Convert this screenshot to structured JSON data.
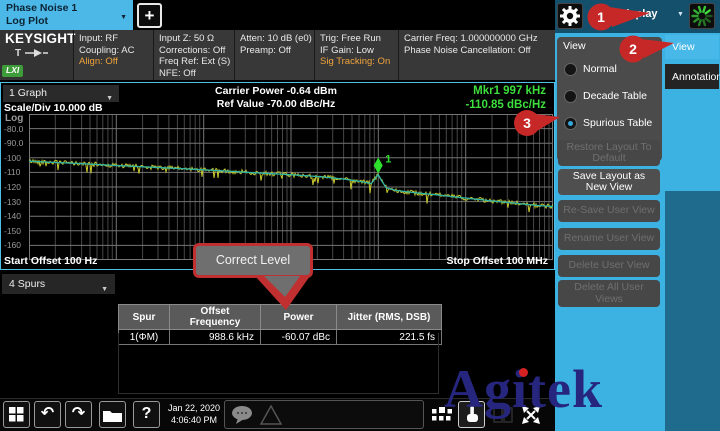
{
  "tab_bar": {
    "tab_line1": "Phase Noise 1",
    "tab_line2": "Log Plot",
    "add_label": "+"
  },
  "status_bar": {
    "brand": "KEYSIGHT",
    "trace_letter": "T",
    "lxi": "LXI",
    "col1": {
      "l1": "Input: RF",
      "l2": "Coupling: AC",
      "l3": "Align: Off"
    },
    "col2": {
      "l1": "Input Z: 50 Ω",
      "l2": "Corrections: Off",
      "l3": "Freq Ref: Ext (S)",
      "l4": "NFE: Off"
    },
    "col3": {
      "l1": "Atten: 10 dB (e0)",
      "l2": "Preamp: Off"
    },
    "col4": {
      "l1": "Trig: Free Run",
      "l2": "IF Gain: Low",
      "l3": "Sig Tracking: On"
    },
    "col5": {
      "l1": "Carrier Freq: 1.000000000 GHz",
      "l2": "Phase Noise Cancellation: Off"
    }
  },
  "graph": {
    "selector": "1 Graph",
    "scale_div": "Scale/Div 10.000 dB",
    "carrier_power": "Carrier Power -0.64 dBm",
    "ref_value": "Ref Value -70.00 dBc/Hz",
    "marker_line1": "Mkr1  997 kHz",
    "marker_line2": "-110.85 dBc/Hz",
    "log_label": "Log",
    "start_label": "Start Offset 100 Hz",
    "stop_label": "Stop Offset 100 MHz"
  },
  "chart_data": {
    "type": "line",
    "title": "Phase Noise Log Plot",
    "x_axis": {
      "scale": "log",
      "start_hz": 100,
      "stop_hz": 100000000,
      "decades": 6
    },
    "y_axis": {
      "top_dbc": -70,
      "bottom_dbc": -170,
      "scale_div_db": 10,
      "ticks": [
        "-80.0",
        "-90.0",
        "-100",
        "-110",
        "-120",
        "-130",
        "-140",
        "-150",
        "-160"
      ]
    },
    "series": [
      {
        "name": "raw-trace",
        "color": "#c9c930",
        "noise_db": 1.5,
        "anchors": [
          [
            2.0,
            -102.3
          ],
          [
            2.3,
            -103.2
          ],
          [
            2.6,
            -104.0
          ],
          [
            3.0,
            -105.3
          ],
          [
            3.4,
            -106.4
          ],
          [
            3.8,
            -107.6
          ],
          [
            4.2,
            -108.9
          ],
          [
            4.6,
            -110.3
          ],
          [
            5.0,
            -111.6
          ],
          [
            5.3,
            -112.8
          ],
          [
            5.6,
            -114.5
          ],
          [
            5.8,
            -116.3
          ],
          [
            5.92,
            -117.6
          ],
          [
            5.96,
            -114.5
          ],
          [
            5.999,
            -111.4
          ],
          [
            6.04,
            -116.0
          ],
          [
            6.09,
            -120.5
          ],
          [
            6.2,
            -122.3
          ],
          [
            6.4,
            -123.8
          ],
          [
            6.7,
            -125.6
          ],
          [
            7.0,
            -127.6
          ],
          [
            7.3,
            -129.5
          ],
          [
            7.6,
            -131.3
          ],
          [
            7.85,
            -132.8
          ],
          [
            8.0,
            -133.3
          ]
        ]
      },
      {
        "name": "smoothed-trace",
        "color": "#2eb4a4",
        "noise_db": 0,
        "anchors": [
          [
            2.0,
            -102.3
          ],
          [
            2.3,
            -103.2
          ],
          [
            2.6,
            -104.0
          ],
          [
            3.0,
            -105.3
          ],
          [
            3.4,
            -106.4
          ],
          [
            3.8,
            -107.6
          ],
          [
            4.2,
            -108.9
          ],
          [
            4.6,
            -110.3
          ],
          [
            5.0,
            -111.6
          ],
          [
            5.3,
            -112.8
          ],
          [
            5.6,
            -114.5
          ],
          [
            5.8,
            -116.3
          ],
          [
            5.92,
            -117.6
          ],
          [
            5.96,
            -114.5
          ],
          [
            5.999,
            -111.4
          ],
          [
            6.04,
            -116.0
          ],
          [
            6.09,
            -120.5
          ],
          [
            6.2,
            -122.3
          ],
          [
            6.4,
            -123.8
          ],
          [
            6.7,
            -125.6
          ],
          [
            7.0,
            -127.6
          ],
          [
            7.3,
            -129.5
          ],
          [
            7.6,
            -131.3
          ],
          [
            7.85,
            -132.8
          ],
          [
            8.0,
            -133.3
          ]
        ]
      }
    ],
    "marker": {
      "label": "1",
      "freq_hz": 997000,
      "value_dbc_hz": -110.85,
      "color": "#2ce02c"
    },
    "grid": {
      "major_color": "#757575",
      "minor_color": "#474747"
    }
  },
  "spurs": {
    "selector": "4 Spurs",
    "headers": [
      "Spur",
      "Offset Frequency",
      "Power",
      "Jitter (RMS, DSB)"
    ],
    "row0": {
      "spur": "1(ΦM)",
      "offset": "988.6 kHz",
      "power": "-60.07 dBc",
      "jitter": "221.5 fs"
    }
  },
  "callout": {
    "text": "Correct Level"
  },
  "annotations": {
    "n1": "1",
    "n2": "2",
    "n3": "3",
    "color": "#c62828"
  },
  "header_menu": {
    "display_label": "Display"
  },
  "side_panel": {
    "group_title": "View",
    "options": [
      {
        "label": "Normal",
        "selected": false
      },
      {
        "label": "Decade Table",
        "selected": false
      },
      {
        "label": "Spurious Table",
        "selected": true
      }
    ],
    "buttons": [
      {
        "label": "Restore Layout To Default",
        "enabled": false
      },
      {
        "label": "Save Layout as New View",
        "enabled": true
      },
      {
        "label": "Re-Save User View",
        "enabled": false
      },
      {
        "label": "Rename User View",
        "enabled": false
      },
      {
        "label": "Delete User View",
        "enabled": false
      },
      {
        "label": "Delete All User Views",
        "enabled": false
      }
    ],
    "tabs": [
      {
        "label": "View",
        "selected": true
      },
      {
        "label": "Annotation",
        "selected": false
      }
    ]
  },
  "toolbar": {
    "date_line1": "Jan 22, 2020",
    "date_line2": "4:06:40 PM"
  },
  "watermark": {
    "text": "Agitek"
  }
}
